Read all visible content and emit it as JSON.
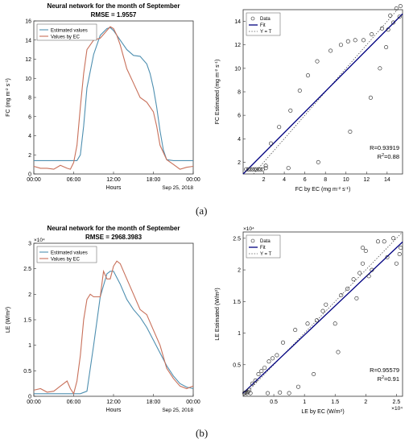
{
  "labels": {
    "a": "(a)",
    "b": "(b)"
  },
  "chart_data": [
    {
      "id": "fc_time",
      "type": "line",
      "title": "Neural network for the month of September",
      "subtitle": "RMSE = 1.9557",
      "xlabel": "Hours",
      "ylabel": "FC (mg m-2 s-1)",
      "xlim": [
        0,
        24
      ],
      "ylim": [
        0,
        16
      ],
      "yticks": [
        0,
        2,
        4,
        6,
        8,
        10,
        12,
        14,
        16
      ],
      "xticks": [
        0,
        6,
        12,
        18,
        24
      ],
      "xticklabels": [
        "00:00",
        "06:00",
        "12:00",
        "18:00",
        "00:00"
      ],
      "date_label": "Sep 25, 2018",
      "legend": {
        "position": "top-left"
      },
      "colors": [
        "#4e8fb0",
        "#c8705a"
      ],
      "series": [
        {
          "name": "Estimated values",
          "x": [
            0,
            2,
            4,
            6,
            6.5,
            7,
            7.5,
            8,
            9,
            10,
            11,
            11.5,
            12,
            13,
            14,
            15,
            16,
            17,
            17.5,
            18,
            18.5,
            19,
            19.5,
            20,
            21,
            22,
            23,
            24
          ],
          "y": [
            1.4,
            1.4,
            1.4,
            1.4,
            1.4,
            2.0,
            5.0,
            9.0,
            12.5,
            14.5,
            15.2,
            15.3,
            15.0,
            14.0,
            13.0,
            12.4,
            12.3,
            11.5,
            10.5,
            9.0,
            7.0,
            4.5,
            2.5,
            1.5,
            1.4,
            1.4,
            1.4,
            1.4
          ]
        },
        {
          "name": "Values by EC",
          "x": [
            0,
            1,
            2,
            3,
            4,
            5,
            5.5,
            6,
            6.5,
            7,
            7.5,
            8,
            9,
            10,
            11,
            11.5,
            12,
            12.5,
            13,
            14,
            15,
            16,
            17,
            18,
            18.5,
            19,
            20,
            21,
            22,
            23,
            24
          ],
          "y": [
            0.8,
            0.6,
            0.6,
            0.5,
            0.9,
            0.6,
            0.5,
            1.2,
            3.0,
            7.0,
            10.5,
            13.0,
            14.0,
            14.2,
            15.0,
            15.4,
            15.2,
            14.5,
            13.5,
            11.0,
            9.5,
            8.0,
            7.5,
            6.5,
            5.0,
            3.0,
            1.5,
            1.0,
            0.5,
            0.7,
            0.8
          ]
        }
      ]
    },
    {
      "id": "fc_scatter",
      "type": "scatter",
      "xlabel": "FC by EC (mg m-2 s-1)",
      "ylabel": "FC Estimated (mg m-2 s-1)",
      "xlim": [
        0,
        15.5
      ],
      "ylim": [
        1,
        15
      ],
      "xticks": [
        2,
        4,
        6,
        8,
        10,
        12,
        14
      ],
      "yticks": [
        2,
        4,
        6,
        8,
        10,
        12,
        14
      ],
      "legend": {
        "position": "top-left",
        "entries": [
          "Data",
          "Fit",
          "Y = T"
        ]
      },
      "colors": [
        "#000080",
        "#555555"
      ],
      "stats": [
        "R=0.93919",
        "R2=0.88"
      ],
      "fit": {
        "slope": 0.88,
        "intercept": 1.0
      },
      "points": [
        [
          0.3,
          1.4
        ],
        [
          0.5,
          1.4
        ],
        [
          0.7,
          1.4
        ],
        [
          0.9,
          1.4
        ],
        [
          1.1,
          1.4
        ],
        [
          1.3,
          1.4
        ],
        [
          1.5,
          1.4
        ],
        [
          1.7,
          1.4
        ],
        [
          1.9,
          1.4
        ],
        [
          2.2,
          1.5
        ],
        [
          2.2,
          1.7
        ],
        [
          2.7,
          3.6
        ],
        [
          3.5,
          5.0
        ],
        [
          4.4,
          1.5
        ],
        [
          4.6,
          6.4
        ],
        [
          5.5,
          8.1
        ],
        [
          6.3,
          9.4
        ],
        [
          7.2,
          10.6
        ],
        [
          7.3,
          2.0
        ],
        [
          8.5,
          11.5
        ],
        [
          9.5,
          12.0
        ],
        [
          10.2,
          12.3
        ],
        [
          10.4,
          4.6
        ],
        [
          10.9,
          12.4
        ],
        [
          11.7,
          12.4
        ],
        [
          12.4,
          7.5
        ],
        [
          12.5,
          12.9
        ],
        [
          13.3,
          10.0
        ],
        [
          13.5,
          13.4
        ],
        [
          13.9,
          11.8
        ],
        [
          14.1,
          13.3
        ],
        [
          14.3,
          14.5
        ],
        [
          14.6,
          13.9
        ],
        [
          14.9,
          15.1
        ],
        [
          15.2,
          14.4
        ],
        [
          15.3,
          15.3
        ]
      ]
    },
    {
      "id": "le_time",
      "type": "line",
      "title": "Neural network for the month of September",
      "subtitle": "RMSE = 2968.3983",
      "xlabel": "Hours",
      "ylabel": "LE (W/m2)",
      "exponent": "×10⁴",
      "xlim": [
        0,
        24
      ],
      "ylim": [
        0,
        3
      ],
      "yticks": [
        0,
        0.5,
        1,
        1.5,
        2,
        2.5,
        3
      ],
      "yticklabels": [
        "0",
        "0.5",
        "1",
        "1.5",
        "2",
        "2.5",
        "3"
      ],
      "xticks": [
        0,
        6,
        12,
        18,
        24
      ],
      "xticklabels": [
        "00:00",
        "06:00",
        "12:00",
        "18:00",
        "00:00"
      ],
      "date_label": "Sep 25, 2018",
      "legend": {
        "position": "top-left"
      },
      "colors": [
        "#4e8fb0",
        "#c8705a"
      ],
      "series": [
        {
          "name": "Estimated values",
          "x": [
            0,
            2,
            4,
            5,
            6,
            7,
            8,
            9,
            10,
            11,
            11.5,
            12,
            13,
            14,
            15,
            16,
            17,
            18,
            19,
            20,
            21,
            22,
            23,
            24
          ],
          "y": [
            0.05,
            0.05,
            0.05,
            0.05,
            0.05,
            0.05,
            0.1,
            1.0,
            1.95,
            2.4,
            2.45,
            2.45,
            2.2,
            1.9,
            1.7,
            1.55,
            1.35,
            1.1,
            0.85,
            0.6,
            0.4,
            0.25,
            0.18,
            0.15
          ]
        },
        {
          "name": "Values by EC",
          "x": [
            0,
            1,
            2,
            3,
            4,
            5,
            5.5,
            6,
            6.5,
            7,
            7.5,
            8,
            8.5,
            9,
            10,
            10.5,
            11,
            11.5,
            12,
            12.5,
            13,
            13.5,
            14,
            15,
            16,
            17,
            18,
            19,
            20,
            21,
            22,
            23,
            24
          ],
          "y": [
            0.12,
            0.15,
            0.08,
            0.1,
            0.2,
            0.3,
            0.15,
            0.05,
            0.3,
            0.8,
            1.5,
            1.9,
            2.0,
            1.95,
            1.95,
            2.45,
            2.3,
            2.3,
            2.55,
            2.65,
            2.6,
            2.45,
            2.3,
            2.0,
            1.7,
            1.6,
            1.3,
            1.0,
            0.55,
            0.35,
            0.2,
            0.15,
            0.2
          ]
        }
      ]
    },
    {
      "id": "le_scatter",
      "type": "scatter",
      "xlabel": "LE by EC (W/m2)",
      "ylabel": "LE Estimated (W/m2)",
      "exponent": "×10⁴",
      "xlim": [
        0,
        2.6
      ],
      "ylim": [
        0,
        2.6
      ],
      "xticks": [
        0.5,
        1,
        1.5,
        2,
        2.5
      ],
      "xticklabels": [
        "0.5",
        "1",
        "1.5",
        "2",
        "2.5"
      ],
      "yticks": [
        0.5,
        1,
        1.5,
        2,
        2.5
      ],
      "yticklabels": [
        "0.5",
        "1",
        "1.5",
        "2",
        "2.5"
      ],
      "legend": {
        "position": "top-left",
        "entries": [
          "Data",
          "Fit",
          "Y = T"
        ]
      },
      "colors": [
        "#000080",
        "#555555"
      ],
      "stats": [
        "R=0.95579",
        "R2=0.91"
      ],
      "fit": {
        "slope": 0.92,
        "intercept": 0.05
      },
      "points": [
        [
          0.02,
          0.05
        ],
        [
          0.04,
          0.06
        ],
        [
          0.06,
          0.05
        ],
        [
          0.08,
          0.07
        ],
        [
          0.1,
          0.1
        ],
        [
          0.12,
          0.05
        ],
        [
          0.15,
          0.2
        ],
        [
          0.2,
          0.25
        ],
        [
          0.25,
          0.35
        ],
        [
          0.3,
          0.4
        ],
        [
          0.35,
          0.45
        ],
        [
          0.4,
          0.05
        ],
        [
          0.42,
          0.55
        ],
        [
          0.48,
          0.6
        ],
        [
          0.55,
          0.65
        ],
        [
          0.6,
          0.06
        ],
        [
          0.65,
          0.85
        ],
        [
          0.75,
          0.05
        ],
        [
          0.85,
          1.05
        ],
        [
          0.9,
          0.15
        ],
        [
          1.05,
          1.15
        ],
        [
          1.15,
          0.35
        ],
        [
          1.2,
          1.2
        ],
        [
          1.3,
          1.35
        ],
        [
          1.35,
          1.45
        ],
        [
          1.5,
          1.15
        ],
        [
          1.55,
          0.7
        ],
        [
          1.6,
          1.6
        ],
        [
          1.7,
          1.7
        ],
        [
          1.8,
          1.85
        ],
        [
          1.85,
          1.55
        ],
        [
          1.9,
          1.95
        ],
        [
          1.95,
          2.1
        ],
        [
          1.95,
          2.35
        ],
        [
          2.0,
          2.3
        ],
        [
          2.05,
          1.9
        ],
        [
          2.1,
          2.0
        ],
        [
          2.2,
          2.45
        ],
        [
          2.3,
          2.45
        ],
        [
          2.35,
          2.2
        ],
        [
          2.45,
          2.5
        ],
        [
          2.5,
          2.1
        ],
        [
          2.55,
          2.25
        ],
        [
          2.57,
          2.35
        ]
      ]
    }
  ]
}
